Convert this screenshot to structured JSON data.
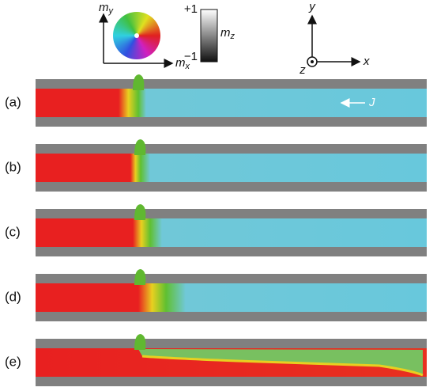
{
  "legend": {
    "my": {
      "symbol": "m",
      "subscript": "y"
    },
    "mx": {
      "symbol": "m",
      "subscript": "x"
    },
    "mz": {
      "symbol": "m",
      "subscript": "z"
    },
    "top": "+1",
    "bottom": "−1"
  },
  "axes": {
    "x": "x",
    "y": "y",
    "z": "z"
  },
  "current": "J",
  "panels": [
    "(a)",
    "(b)",
    "(c)",
    "(d)",
    "(e)"
  ]
}
